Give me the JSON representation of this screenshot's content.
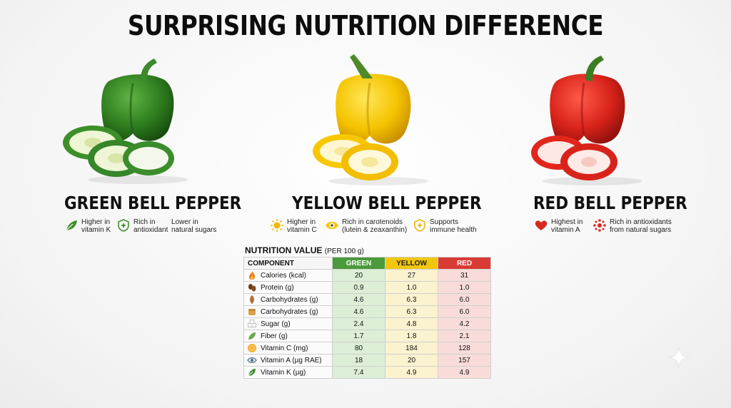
{
  "title": "SURPRISING NUTRITION DIFFERENCE",
  "peppers": [
    {
      "name": "GREEN BELL PEPPER",
      "color": "#3f8f2b",
      "features": [
        {
          "icon": "leaf-icon",
          "text": "Higher in\nvitamin K"
        },
        {
          "icon": "shield-plus-icon",
          "text": "Rich in\nantioxidant"
        },
        {
          "icon": "none",
          "text": "Lower in\nnatural sugars"
        }
      ]
    },
    {
      "name": "YELLOW BELL PEPPER",
      "color": "#f2c300",
      "features": [
        {
          "icon": "sun-icon",
          "text": "Higher in\nvitamin C"
        },
        {
          "icon": "eye-icon",
          "text": "Rich in carotenoids\n(lutein & zeaxanthin)"
        },
        {
          "icon": "shield-plus-icon",
          "text": "Supports\nimmune health"
        }
      ]
    },
    {
      "name": "RED BELL PEPPER",
      "color": "#d62a21",
      "features": [
        {
          "icon": "heart-icon",
          "text": "Highest in\nvitamin A"
        },
        {
          "icon": "antioxidant-cluster-icon",
          "text": "Rich in antioxidants\nfrom natural sugars"
        }
      ]
    }
  ],
  "table": {
    "caption": "NUTRITION VALUE",
    "caption_sub": "(PER 100 g)",
    "headers": [
      "COMPONENT",
      "GREEN",
      "YELLOW",
      "RED"
    ],
    "rows": [
      {
        "icon": "flame-icon",
        "label": "Calories (kcal)",
        "green": "20",
        "yellow": "27",
        "red": "31"
      },
      {
        "icon": "beans-icon",
        "label": "Protein (g)",
        "green": "0.9",
        "yellow": "1.0",
        "red": "1.0"
      },
      {
        "icon": "grain-icon",
        "label": "Carbohydrates (g)",
        "green": "4.6",
        "yellow": "6.3",
        "red": "6.0"
      },
      {
        "icon": "bread-icon",
        "label": "Carbohydrates (g)",
        "green": "4.6",
        "yellow": "6.3",
        "red": "6.0"
      },
      {
        "icon": "sugar-cubes-icon",
        "label": "Sugar (g)",
        "green": "2.4",
        "yellow": "4.8",
        "red": "4.2"
      },
      {
        "icon": "fiber-leaf-icon",
        "label": "Fiber (g)",
        "green": "1.7",
        "yellow": "1.8",
        "red": "2.1"
      },
      {
        "icon": "orange-slice-icon",
        "label": "Vitamin C (mg)",
        "green": "80",
        "yellow": "184",
        "red": "128"
      },
      {
        "icon": "eye-icon",
        "label": "Vitamin A (µg RAE)",
        "green": "18",
        "yellow": "20",
        "red": "157"
      },
      {
        "icon": "leaf-icon",
        "label": "Vitamin K (µg)",
        "green": "7.4",
        "yellow": "4.9",
        "red": "4.9"
      }
    ]
  }
}
